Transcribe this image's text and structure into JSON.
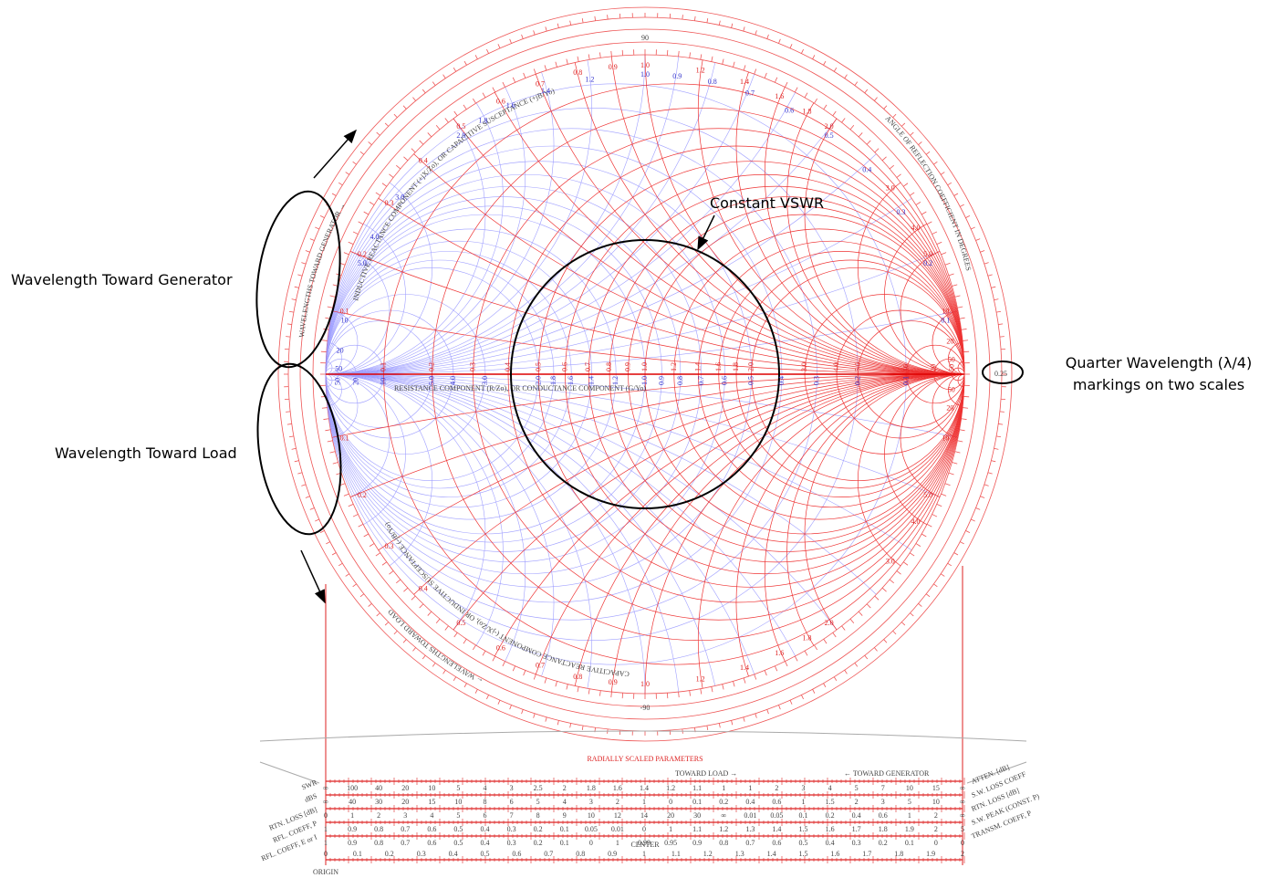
{
  "annotations": {
    "constant_vswr": "Constant VSWR",
    "toward_generator": "Wavelength Toward Generator",
    "toward_load": "Wavelength Toward Load",
    "quarter_wavelength": [
      "Quarter Wavelength (λ/4)",
      "markings on two scales"
    ]
  },
  "chart": {
    "axis_title": "RESISTANCE COMPONENT (R/Zo), OR CONDUCTANCE COMPONENT (G/Yo)",
    "inductive_title": "INDUCTIVE REACTANCE COMPONENT (+jX/Zo), OR CAPACITIVE SUSCEPTANCE (+jB/Yo)",
    "capacitive_title": "CAPACITIVE REACTANCE COMPONENT (-jX/Zo), OR INDUCTIVE SUSCEPTANCE (-jB/Yo)",
    "angle_title": "ANGLE OF REFLECTION COEFFICIENT IN DEGREES",
    "wavelengths_generator": "WAVELENGTHS TOWARD GENERATOR →",
    "wavelengths_load": "← WAVELENGTHS TOWARD LOAD",
    "resistance_labels": [
      "0.1",
      "0.2",
      "0.3",
      "0.4",
      "0.5",
      "0.6",
      "0.7",
      "0.8",
      "0.9",
      "1.0",
      "1.2",
      "1.4",
      "1.6",
      "1.8",
      "2.0",
      "3.0",
      "4.0",
      "5.0",
      "10",
      "20",
      "50"
    ],
    "reactance_labels": [
      "0.1",
      "0.2",
      "0.3",
      "0.4",
      "0.5",
      "0.6",
      "0.7",
      "0.8",
      "0.9",
      "1.0",
      "1.2",
      "1.4",
      "1.6",
      "1.8",
      "2.0",
      "3.0",
      "4.0",
      "5.0",
      "10",
      "20",
      "50"
    ],
    "ring_top": "90",
    "ring_bottom": "-90",
    "ring_right": "0.25"
  },
  "scales": {
    "title": "RADIALLY SCALED PARAMETERS",
    "toward_load": "TOWARD LOAD →",
    "toward_generator": "← TOWARD GENERATOR",
    "center": "CENTER",
    "origin": "ORIGIN",
    "left_names": [
      "SWR",
      "dBS",
      "RTN. LOSS [dB]",
      "RFL. COEFF, P",
      "RFL. COEFF, E or I"
    ],
    "right_names": [
      "ATTEN. [dB]",
      "S.W. LOSS COEFF",
      "RTN. LOSS [dB]",
      "S.W. PEAK (CONST. P)",
      "TRANSM. COEFF, P"
    ],
    "rows": [
      [
        "∞",
        "100",
        "40",
        "20",
        "10",
        "5",
        "4",
        "3",
        "2.5",
        "2",
        "1.8",
        "1.6",
        "1.4",
        "1.2",
        "1.1",
        "1",
        "1",
        "2",
        "3",
        "4",
        "5",
        "7",
        "10",
        "15",
        "∞"
      ],
      [
        "∞",
        "40",
        "30",
        "20",
        "15",
        "10",
        "8",
        "6",
        "5",
        "4",
        "3",
        "2",
        "1",
        "0",
        "0.1",
        "0.2",
        "0.4",
        "0.6",
        "1",
        "1.5",
        "2",
        "3",
        "5",
        "10",
        "∞"
      ],
      [
        "0",
        "1",
        "2",
        "3",
        "4",
        "5",
        "6",
        "7",
        "8",
        "9",
        "10",
        "12",
        "14",
        "20",
        "30",
        "∞",
        "0.01",
        "0.05",
        "0.1",
        "0.2",
        "0.4",
        "0.6",
        "1",
        "2",
        "∞"
      ],
      [
        "1",
        "0.9",
        "0.8",
        "0.7",
        "0.6",
        "0.5",
        "0.4",
        "0.3",
        "0.2",
        "0.1",
        "0.05",
        "0.01",
        "0",
        "1",
        "1.1",
        "1.2",
        "1.3",
        "1.4",
        "1.5",
        "1.6",
        "1.7",
        "1.8",
        "1.9",
        "2",
        "5"
      ],
      [
        "1",
        "0.9",
        "0.8",
        "0.7",
        "0.6",
        "0.5",
        "0.4",
        "0.3",
        "0.2",
        "0.1",
        "0",
        "1",
        "0.99",
        "0.95",
        "0.9",
        "0.8",
        "0.7",
        "0.6",
        "0.5",
        "0.4",
        "0.3",
        "0.2",
        "0.1",
        "0",
        "0"
      ],
      [
        "0",
        "0.1",
        "0.2",
        "0.3",
        "0.4",
        "0.5",
        "0.6",
        "0.7",
        "0.8",
        "0.9",
        "1",
        "1.1",
        "1.2",
        "1.3",
        "1.4",
        "1.5",
        "1.6",
        "1.7",
        "1.8",
        "1.9",
        "2"
      ]
    ]
  }
}
